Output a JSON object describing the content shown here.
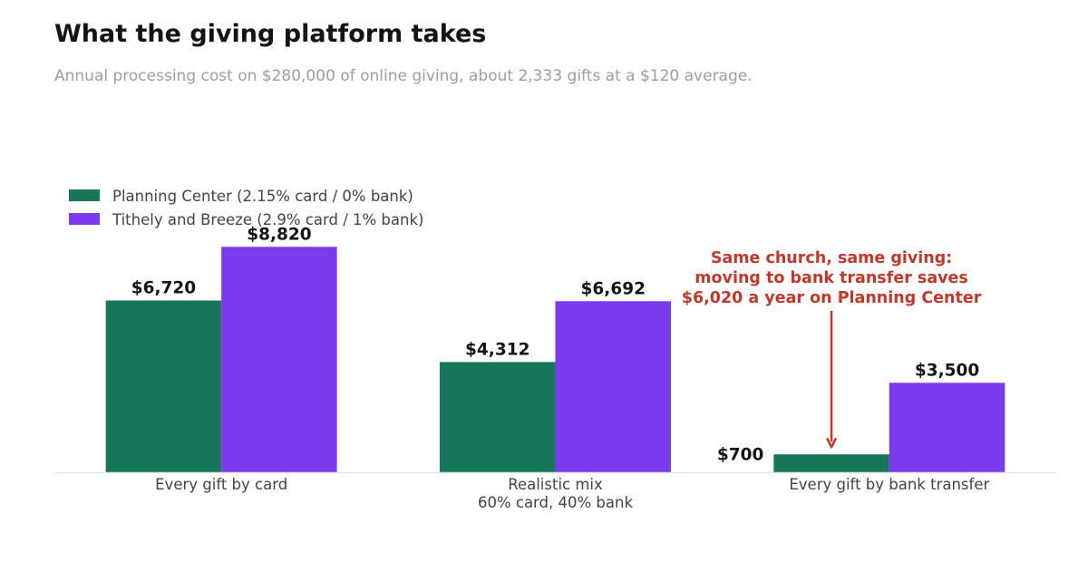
{
  "chart_data": {
    "type": "bar",
    "title": "What the giving platform takes",
    "subtitle": "Annual processing cost on $280,000 of online giving, about 2,333 gifts at a $120 average.",
    "xlabel": "",
    "ylabel": "",
    "categories": [
      [
        "Every gift by card"
      ],
      [
        "Realistic mix",
        "60% card, 40% bank"
      ],
      [
        "Every gift by bank transfer"
      ]
    ],
    "series": [
      {
        "name": "Planning Center  (2.15% card / 0% bank)",
        "color": "#16755b",
        "values": [
          6720,
          4312,
          700
        ],
        "labels": [
          "$6,720",
          "$4,312",
          "$700"
        ]
      },
      {
        "name": "Tithely and Breeze  (2.9% card / 1% bank)",
        "color": "#7c3aed",
        "values": [
          8820,
          6692,
          3500
        ],
        "labels": [
          "$8,820",
          "$6,692",
          "$3,500"
        ]
      }
    ],
    "ylim": [
      0,
      10000
    ],
    "grid": false,
    "legend": "top-left",
    "annotation": {
      "lines": [
        "Same church, same giving:",
        "moving to bank transfer saves",
        "$6,020 a year on Planning Center"
      ],
      "color": "#c0392b",
      "target": {
        "category": 2,
        "series": 0
      }
    }
  }
}
